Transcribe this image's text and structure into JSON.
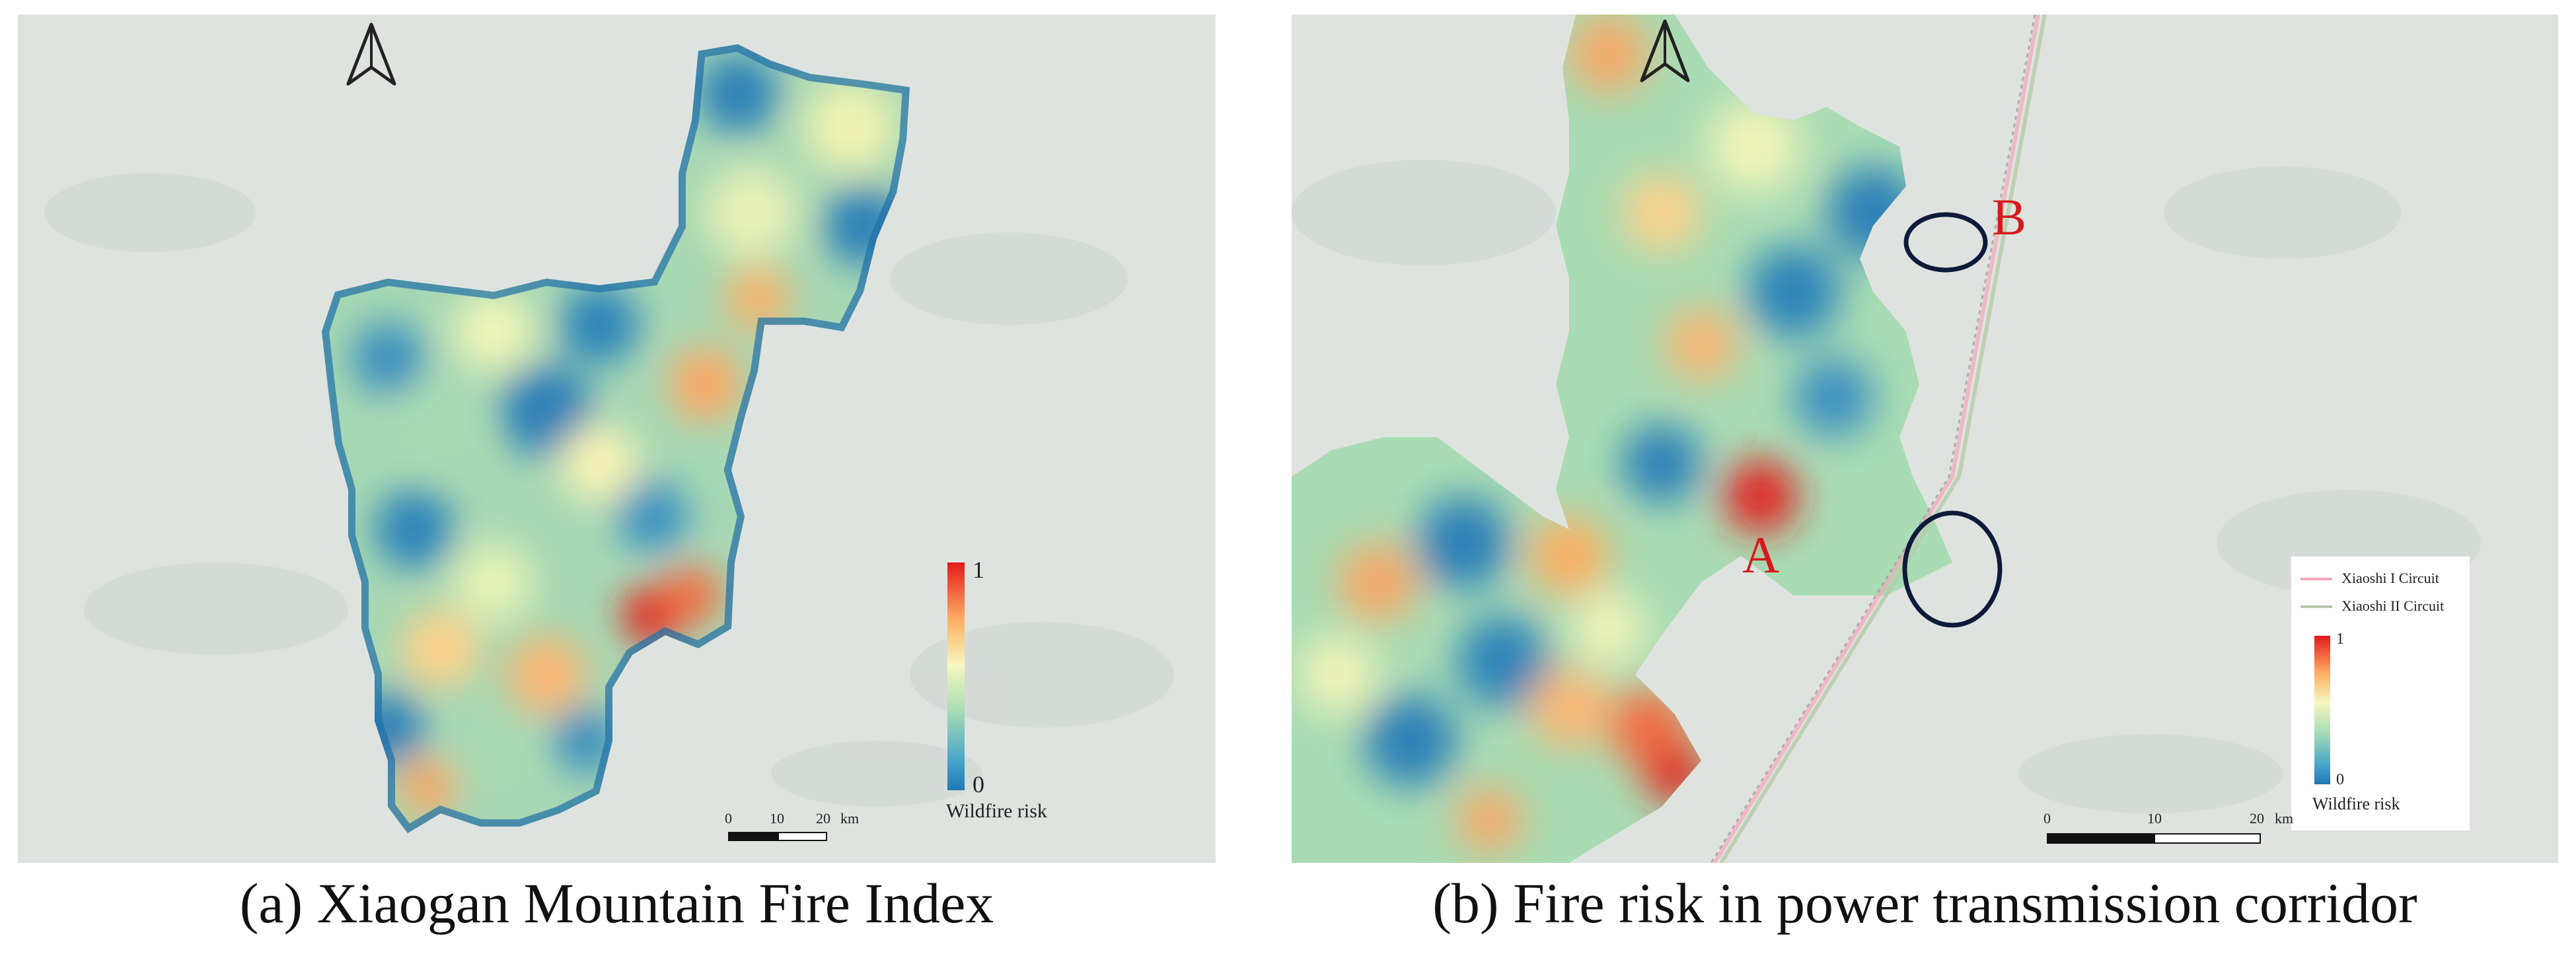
{
  "panel_a": {
    "caption": "(a) Xiaogan Mountain Fire Index",
    "legend": {
      "max_label": "1",
      "min_label": "0",
      "title": "Wildfire risk"
    },
    "scale": {
      "ticks": [
        "0",
        "10",
        "20"
      ],
      "unit": "km"
    },
    "north_arrow": "north-arrow-icon"
  },
  "panel_b": {
    "caption": "(b) Fire risk in power transmission corridor",
    "legend": {
      "lines": [
        {
          "label": "Xiaoshi I Circuit",
          "color": "#f4a6b8"
        },
        {
          "label": "Xiaoshi II Circuit",
          "color": "#b7c9a8"
        }
      ],
      "max_label": "1",
      "min_label": "0",
      "title": "Wildfire risk"
    },
    "scale": {
      "ticks": [
        "0",
        "10",
        "20"
      ],
      "unit": "km"
    },
    "markers": [
      "A",
      "B"
    ],
    "north_arrow": "north-arrow-icon"
  },
  "colors": {
    "low_risk": "#1f78b4",
    "mid_risk": "#f7f7c0",
    "high_risk": "#e31a1c",
    "background": "#dfe3e0",
    "marker_text": "#d7191c",
    "marker_circle": "#0d1a3a"
  }
}
